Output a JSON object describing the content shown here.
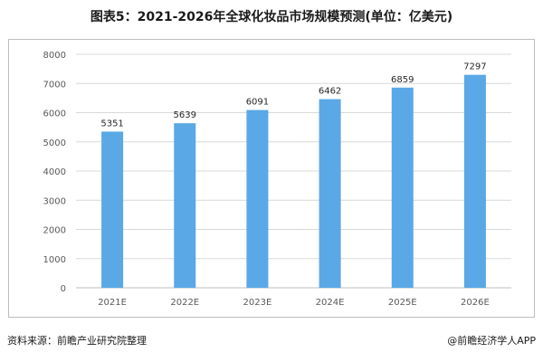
{
  "title": "图表5：2021-2026年全球化妆品市场规模预测(单位：亿美元)",
  "source": "资料来源：前瞻产业研究院整理",
  "credit": "@前瞻经济学人APP",
  "colors": {
    "bar": "#5aa8e6",
    "grid": "#d9d9d9",
    "axis_text": "#595959",
    "axis_line": "#bfbfbf"
  },
  "chart_data": {
    "type": "bar",
    "categories": [
      "2021E",
      "2022E",
      "2023E",
      "2024E",
      "2025E",
      "2026E"
    ],
    "values": [
      5351,
      5639,
      6091,
      6462,
      6859,
      7297
    ],
    "ylim": [
      0,
      8000
    ],
    "yticks": [
      0,
      1000,
      2000,
      3000,
      4000,
      5000,
      6000,
      7000,
      8000
    ],
    "data_labels": [
      "5351",
      "5639",
      "6091",
      "6462",
      "6859",
      "7297"
    ],
    "grid": true,
    "legend": "none"
  }
}
